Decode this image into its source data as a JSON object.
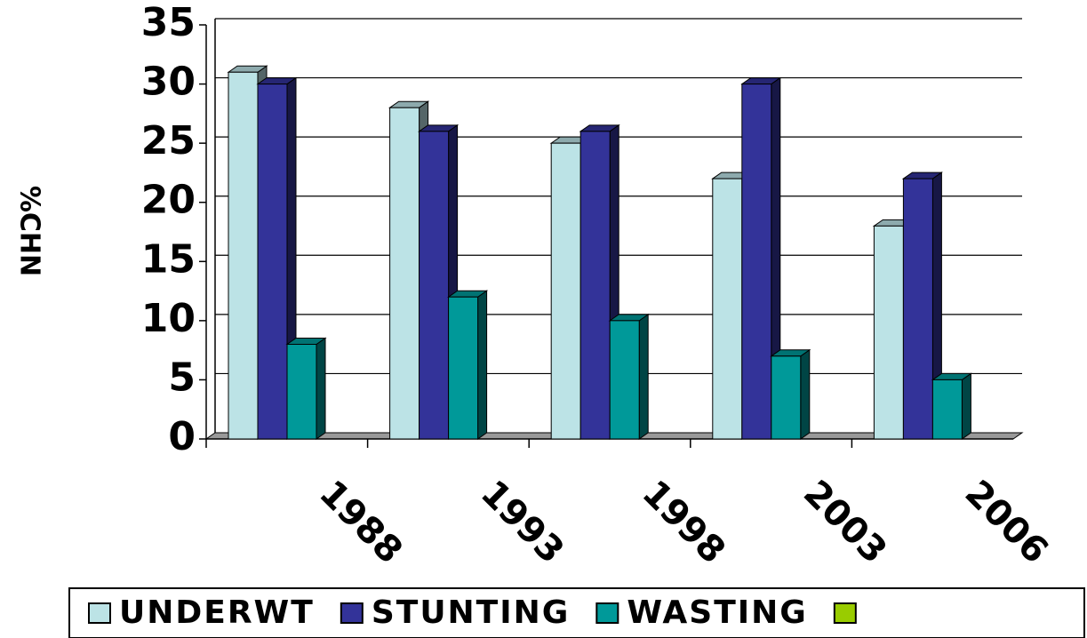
{
  "chart_data": {
    "type": "bar3d",
    "y_label": "%CHN",
    "categories": [
      "1988",
      "1993",
      "1998",
      "2003",
      "2006"
    ],
    "series": [
      {
        "name": "UNDERWT",
        "color": "#bce3e6",
        "values": [
          31,
          28,
          25,
          22,
          18
        ]
      },
      {
        "name": "STUNTING",
        "color": "#333399",
        "values": [
          30,
          26,
          26,
          30,
          22
        ]
      },
      {
        "name": "WASTING",
        "color": "#009999",
        "values": [
          8,
          12,
          10,
          7,
          5
        ]
      },
      {
        "name": null,
        "color": "#99cc00",
        "values": [
          null,
          null,
          null,
          null,
          null
        ]
      }
    ],
    "ylim": [
      0,
      35
    ],
    "yticks": [
      0,
      5,
      10,
      15,
      20,
      25,
      30,
      35
    ],
    "grid": true
  }
}
